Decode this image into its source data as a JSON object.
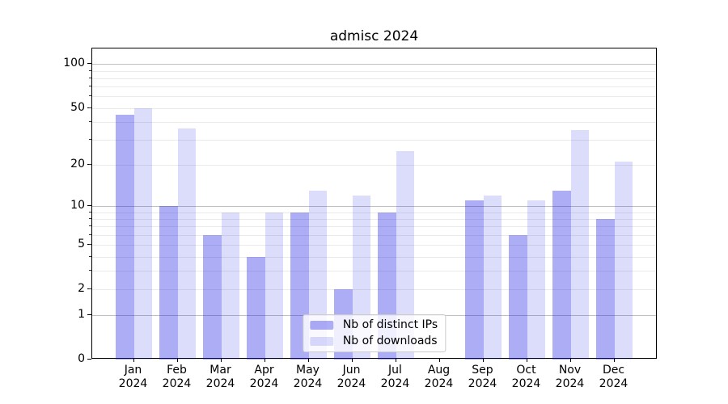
{
  "chart_data": {
    "type": "bar",
    "title": "admisc 2024",
    "categories": [
      "Jan 2024",
      "Feb 2024",
      "Mar 2024",
      "Apr 2024",
      "May 2024",
      "Jun 2024",
      "Jul 2024",
      "Aug 2024",
      "Sep 2024",
      "Oct 2024",
      "Nov 2024",
      "Dec 2024"
    ],
    "x_tick_months": [
      "Jan",
      "Feb",
      "Mar",
      "Apr",
      "May",
      "Jun",
      "Jul",
      "Aug",
      "Sep",
      "Oct",
      "Nov",
      "Dec"
    ],
    "x_tick_year": "2024",
    "series": [
      {
        "name": "Nb of distinct IPs",
        "color": "#1414E659",
        "values": [
          45,
          10,
          6,
          4,
          9,
          2,
          9,
          0,
          11,
          6,
          13,
          8
        ]
      },
      {
        "name": "Nb of downloads",
        "color": "#1414E626",
        "values": [
          50,
          36,
          9,
          9,
          13,
          12,
          25,
          0,
          12,
          11,
          35,
          21
        ]
      }
    ],
    "y_scale": "log10(1+x)",
    "ylim": [
      0,
      128
    ],
    "y_ticks": [
      {
        "label": "100",
        "value": 100
      },
      {
        "label": "50",
        "value": 50
      },
      {
        "label": "20",
        "value": 20
      },
      {
        "label": "10",
        "value": 10
      },
      {
        "label": "5",
        "value": 5
      },
      {
        "label": "2",
        "value": 2
      },
      {
        "label": "1",
        "value": 1
      },
      {
        "label": "0",
        "value": 0
      }
    ],
    "y_major_gridlines": [
      1,
      10,
      100
    ],
    "y_minor_gridlines": [
      2,
      3,
      4,
      5,
      6,
      7,
      8,
      9,
      20,
      30,
      40,
      50,
      60,
      70,
      80,
      90
    ],
    "grid": true,
    "legend_position": "lower center",
    "colors": {
      "major_grid": "#c0c0c0",
      "minor_grid": "#eaeaea",
      "axis": "#000000",
      "background": "#ffffff",
      "legend_border": "#cccccc"
    }
  }
}
